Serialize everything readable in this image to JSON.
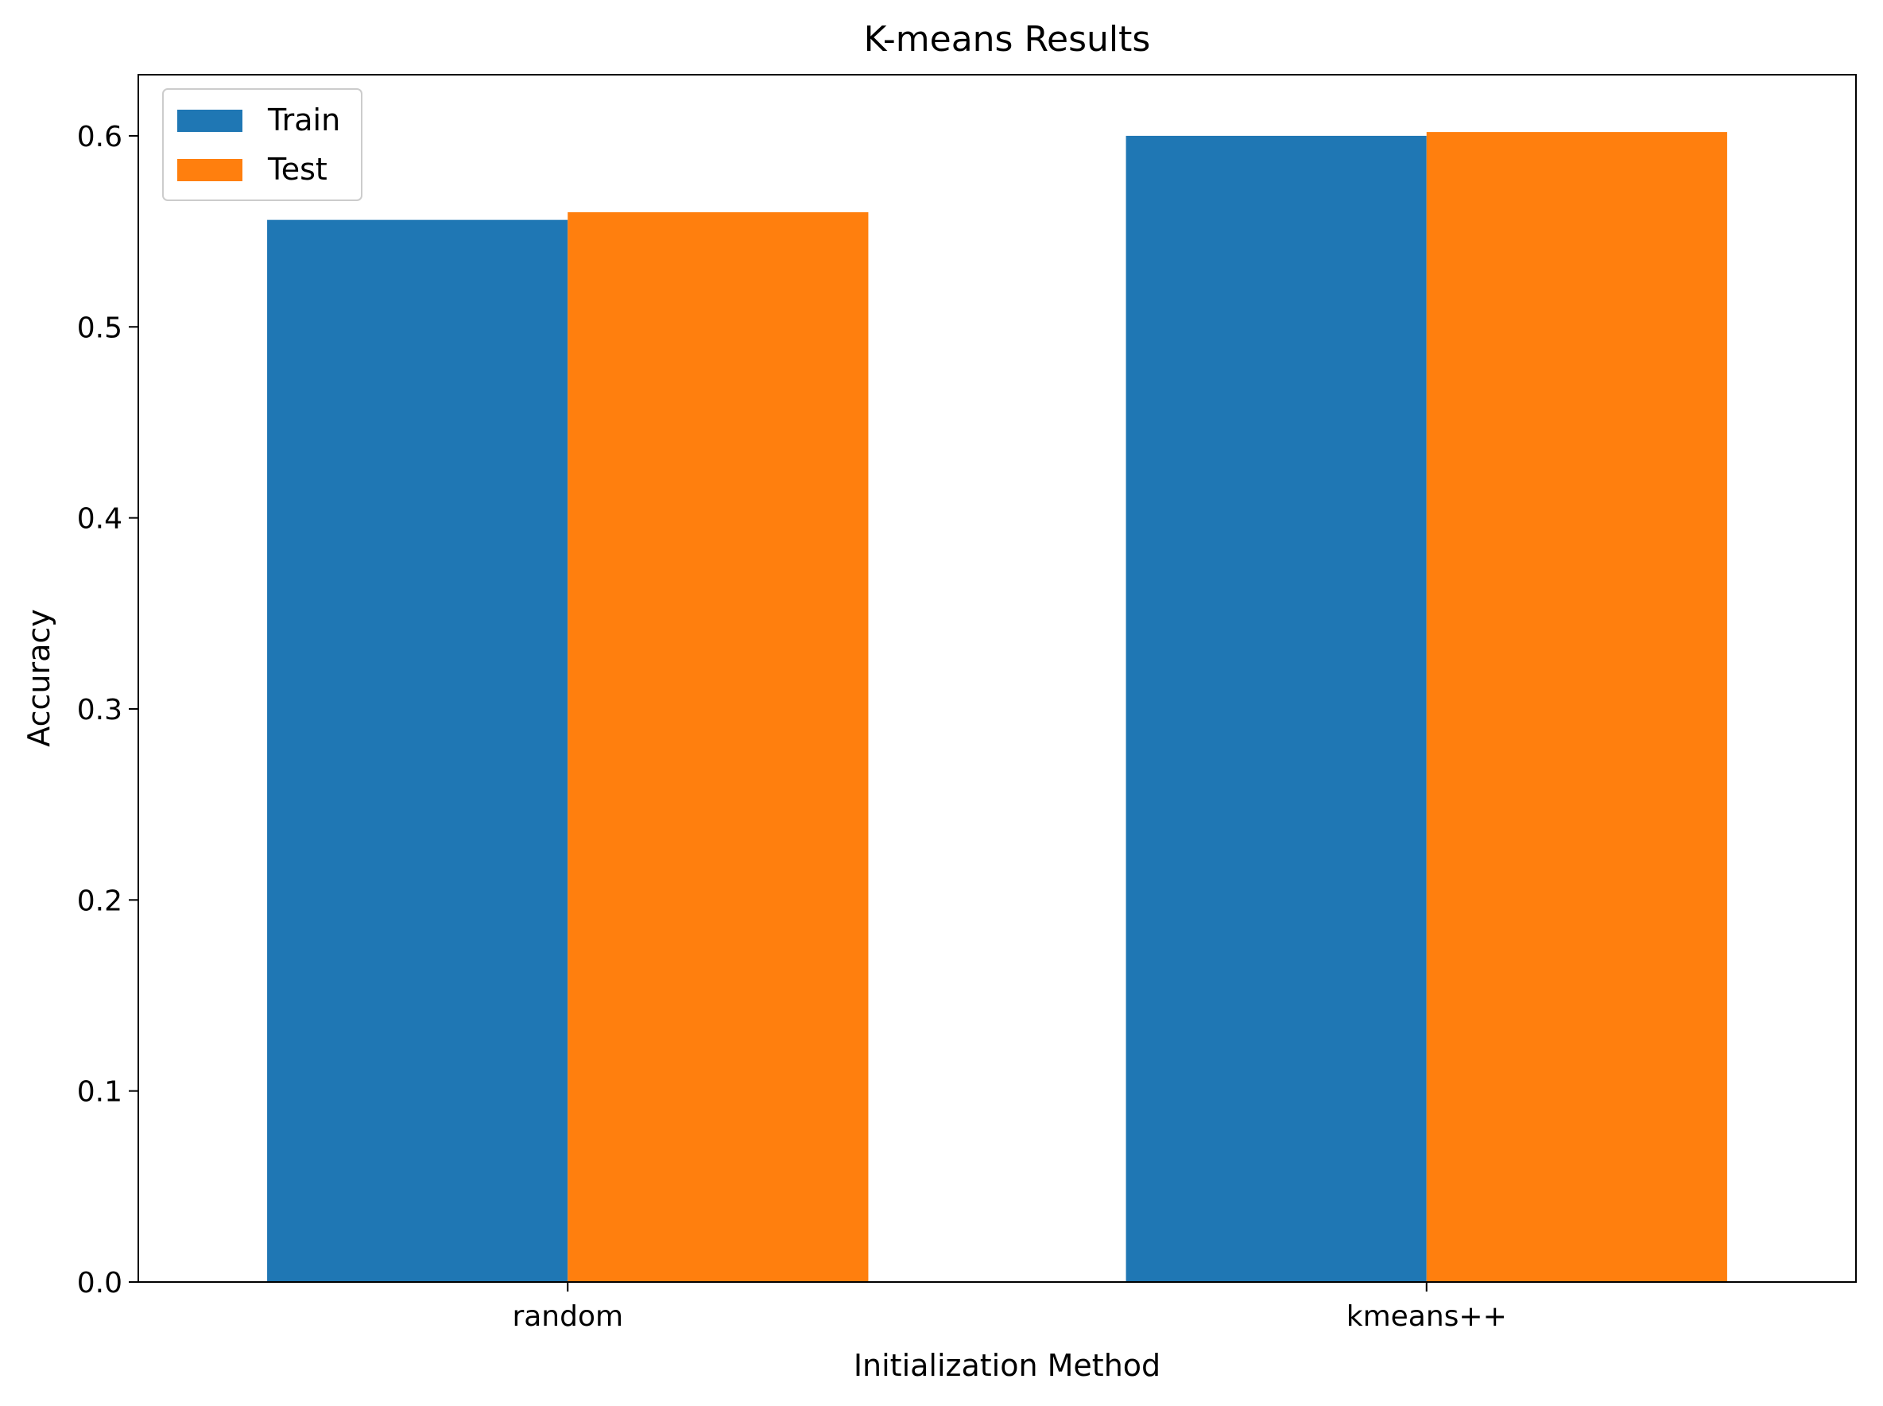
{
  "chart_data": {
    "type": "bar",
    "title": "K-means Results",
    "xlabel": "Initialization Method",
    "ylabel": "Accuracy",
    "categories": [
      "random",
      "kmeans++"
    ],
    "series": [
      {
        "name": "Train",
        "color": "#1f77b4",
        "values": [
          0.556,
          0.6
        ]
      },
      {
        "name": "Test",
        "color": "#ff7f0e",
        "values": [
          0.56,
          0.602
        ]
      }
    ],
    "ylim": [
      0,
      0.632
    ],
    "yticks": [
      "0.0",
      "0.1",
      "0.2",
      "0.3",
      "0.4",
      "0.5",
      "0.6"
    ],
    "grid": false,
    "legend_position": "top-left"
  }
}
